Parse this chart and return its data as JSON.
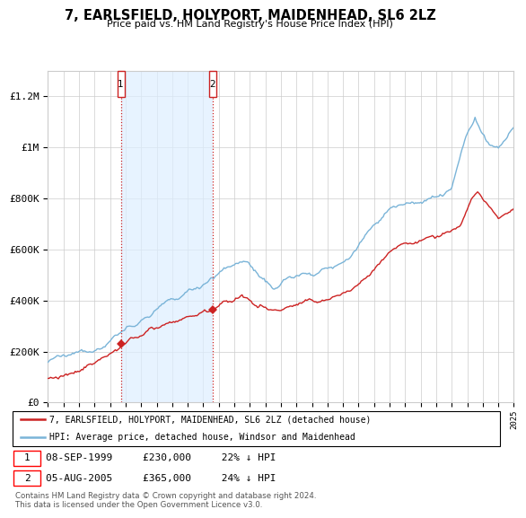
{
  "title": "7, EARLSFIELD, HOLYPORT, MAIDENHEAD, SL6 2LZ",
  "subtitle": "Price paid vs. HM Land Registry's House Price Index (HPI)",
  "hpi_color": "#7ab4d8",
  "price_color": "#cc2222",
  "shade_color": "#ddeeff",
  "sale1_date_label": "08-SEP-1999",
  "sale1_price_label": "£230,000",
  "sale1_pct_label": "22% ↓ HPI",
  "sale2_date_label": "05-AUG-2005",
  "sale2_price_label": "£365,000",
  "sale2_pct_label": "24% ↓ HPI",
  "legend_line1": "7, EARLSFIELD, HOLYPORT, MAIDENHEAD, SL6 2LZ (detached house)",
  "legend_line2": "HPI: Average price, detached house, Windsor and Maidenhead",
  "footer": "Contains HM Land Registry data © Crown copyright and database right 2024.\nThis data is licensed under the Open Government Licence v3.0.",
  "ylim": [
    0,
    1300000
  ],
  "sale1_year": 1999.69,
  "sale1_price": 230000,
  "sale2_year": 2005.59,
  "sale2_price": 365000,
  "yticks": [
    0,
    200000,
    400000,
    600000,
    800000,
    1000000,
    1200000
  ],
  "ylabels": [
    "£0",
    "£200K",
    "£400K",
    "£600K",
    "£800K",
    "£1M",
    "£1.2M"
  ]
}
